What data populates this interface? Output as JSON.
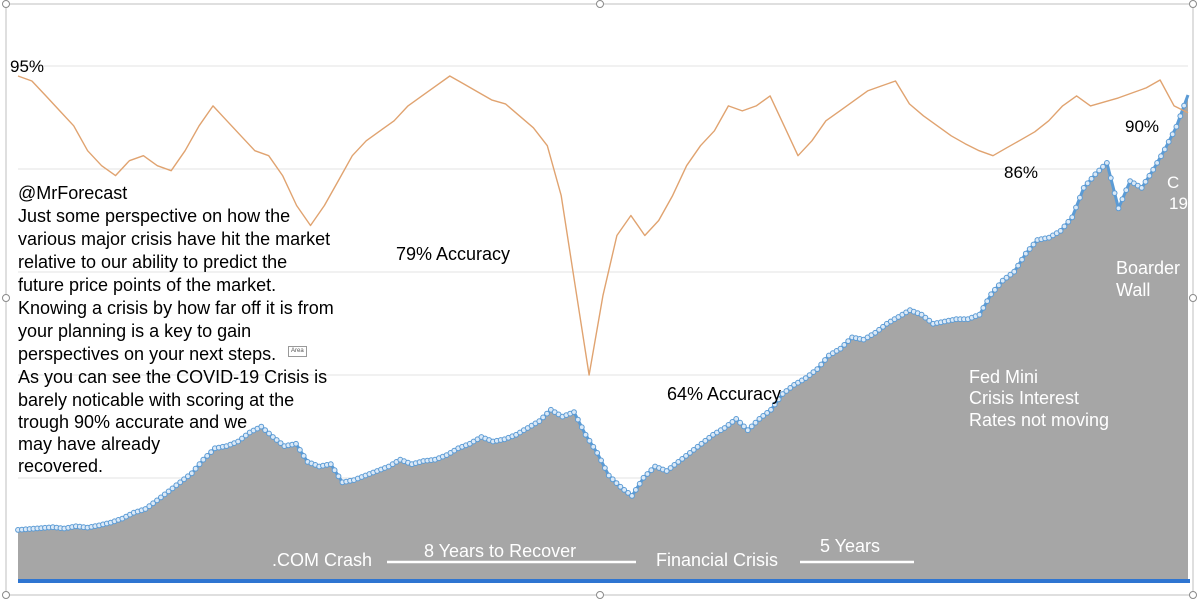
{
  "chart_data": {
    "type": "area",
    "grid": true,
    "series": [
      {
        "id": "forecast_accuracy",
        "color": "#e0a370",
        "values": [
          94,
          93.5,
          92,
          90.5,
          89,
          86.5,
          85,
          84,
          85.5,
          86,
          85,
          84.5,
          86.5,
          89,
          91,
          89.5,
          88,
          86.5,
          86,
          84,
          81,
          79,
          81,
          83.5,
          86,
          87.5,
          88.5,
          89.5,
          91,
          92,
          93,
          94,
          93.2,
          92.4,
          91.6,
          91.2,
          90,
          88.8,
          87,
          82,
          73,
          64,
          72,
          78,
          80,
          78,
          79.5,
          82,
          85,
          87,
          88.5,
          91,
          90.5,
          91,
          92,
          89,
          86,
          87.5,
          89.5,
          90.5,
          91.5,
          92.5,
          93,
          93.5,
          91.2,
          90,
          89,
          88,
          87.2,
          86.5,
          86,
          86.8,
          87.6,
          88.4,
          89.5,
          91,
          92,
          91,
          91.4,
          91.8,
          92.3,
          92.8,
          93.6,
          91,
          90.3
        ]
      },
      {
        "id": "market_price",
        "color": "#5b9bd5",
        "fill": "#a6a6a6",
        "values": [
          4,
          4.2,
          4.4,
          4.6,
          4.3,
          4.8,
          4.5,
          5,
          5.6,
          6.5,
          7.8,
          8.6,
          10.5,
          12.5,
          14.5,
          16.5,
          19.5,
          22,
          22.5,
          23.5,
          25.5,
          26.8,
          24.5,
          22.5,
          23,
          19,
          18,
          18.5,
          14.5,
          15,
          16,
          17,
          18,
          19.5,
          18.5,
          19.2,
          19.5,
          20.5,
          22,
          23,
          24.5,
          23.5,
          24,
          25,
          26.5,
          28,
          30.5,
          29,
          30,
          25,
          21,
          16,
          13.5,
          11.5,
          15.5,
          18,
          17,
          19,
          21,
          23,
          25,
          26.5,
          28.5,
          26,
          28.5,
          30.5,
          34,
          36,
          37.5,
          39.5,
          42.5,
          44,
          46.5,
          46,
          47.5,
          49.5,
          51,
          52.5,
          51.5,
          49.5,
          50,
          50.5,
          50.5,
          51.5,
          56,
          59,
          61,
          65,
          68,
          68.5,
          70,
          73,
          79.5,
          82.5,
          85,
          75,
          81,
          79.5,
          83.5,
          88,
          93,
          100
        ]
      }
    ],
    "annotations": [
      {
        "id": "a95",
        "text": "95%"
      },
      {
        "id": "a79",
        "text": "79% Accuracy"
      },
      {
        "id": "a64",
        "text": "64% Accuracy"
      },
      {
        "id": "a86",
        "text": "86%"
      },
      {
        "id": "a90",
        "text": "90%"
      },
      {
        "id": "fed1",
        "text": "Fed Mini"
      },
      {
        "id": "fed2",
        "text": "Crisis Interest"
      },
      {
        "id": "fed3",
        "text": "Rates not moving"
      },
      {
        "id": "wall1",
        "text": "Boarder"
      },
      {
        "id": "wall2",
        "text": "Wall"
      },
      {
        "id": "c1",
        "text": "C"
      },
      {
        "id": "c2",
        "text": "19"
      },
      {
        "id": "dotcom",
        "text": ".COM Crash"
      },
      {
        "id": "recover",
        "text": "8 Years to Recover"
      },
      {
        "id": "fincrisis",
        "text": "Financial Crisis"
      },
      {
        "id": "fiveyears",
        "text": "5 Years"
      }
    ],
    "commentary": [
      "@MrForecast",
      "Just some perspective on how the",
      "various major crisis have hit the market",
      "relative to our ability to predict the",
      "future price points of the market.",
      "Knowing a crisis by how far off it is from",
      "your planning is a key to gain",
      "perspectives on your next steps.",
      "As you can see the COVID-19 Crisis is",
      "barely noticable with scoring at the",
      "trough 90% accurate and we",
      "may have already",
      "recovered."
    ]
  },
  "ui": {
    "overlay_label": "Area"
  }
}
